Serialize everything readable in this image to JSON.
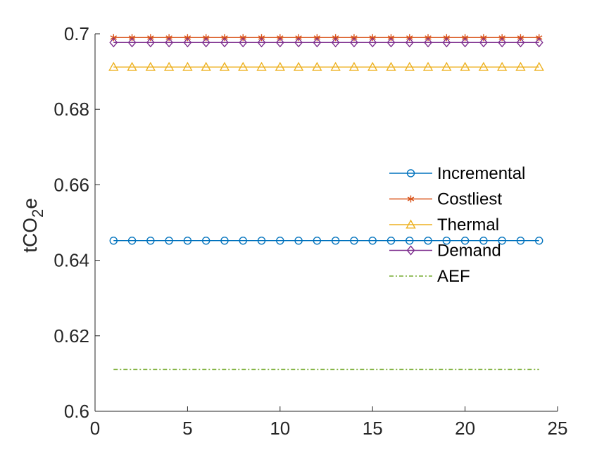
{
  "chart_data": {
    "type": "line",
    "ylabel": "tCO",
    "ylabel_sub": "2",
    "ylabel_tail": "e",
    "xlim": [
      0,
      25
    ],
    "ylim": [
      0.6,
      0.7
    ],
    "xticks": [
      0,
      5,
      10,
      15,
      20,
      25
    ],
    "yticks": [
      0.6,
      0.62,
      0.64,
      0.66,
      0.68,
      0.7
    ],
    "ytick_labels": [
      "0.6",
      "0.62",
      "0.64",
      "0.66",
      "0.68",
      "0.7"
    ],
    "xtick_labels": [
      "0",
      "5",
      "10",
      "15",
      "20",
      "25"
    ],
    "grid": false,
    "legend_position": "center-right",
    "x": [
      1,
      2,
      3,
      4,
      5,
      6,
      7,
      8,
      9,
      10,
      11,
      12,
      13,
      14,
      15,
      16,
      17,
      18,
      19,
      20,
      21,
      22,
      23,
      24
    ],
    "series": [
      {
        "name": "Incremental",
        "value": 0.6452,
        "color": "#0072BD",
        "marker": "circle",
        "dash": "solid"
      },
      {
        "name": "Costliest",
        "value": 0.699,
        "color": "#D95319",
        "marker": "asterisk",
        "dash": "solid"
      },
      {
        "name": "Thermal",
        "value": 0.6912,
        "color": "#EDB120",
        "marker": "triangle",
        "dash": "solid"
      },
      {
        "name": "Demand",
        "value": 0.6977,
        "color": "#7E2F8E",
        "marker": "diamond",
        "dash": "solid"
      },
      {
        "name": "AEF",
        "value": 0.6111,
        "color": "#77AC30",
        "marker": "none",
        "dash": "dashdot"
      }
    ]
  }
}
